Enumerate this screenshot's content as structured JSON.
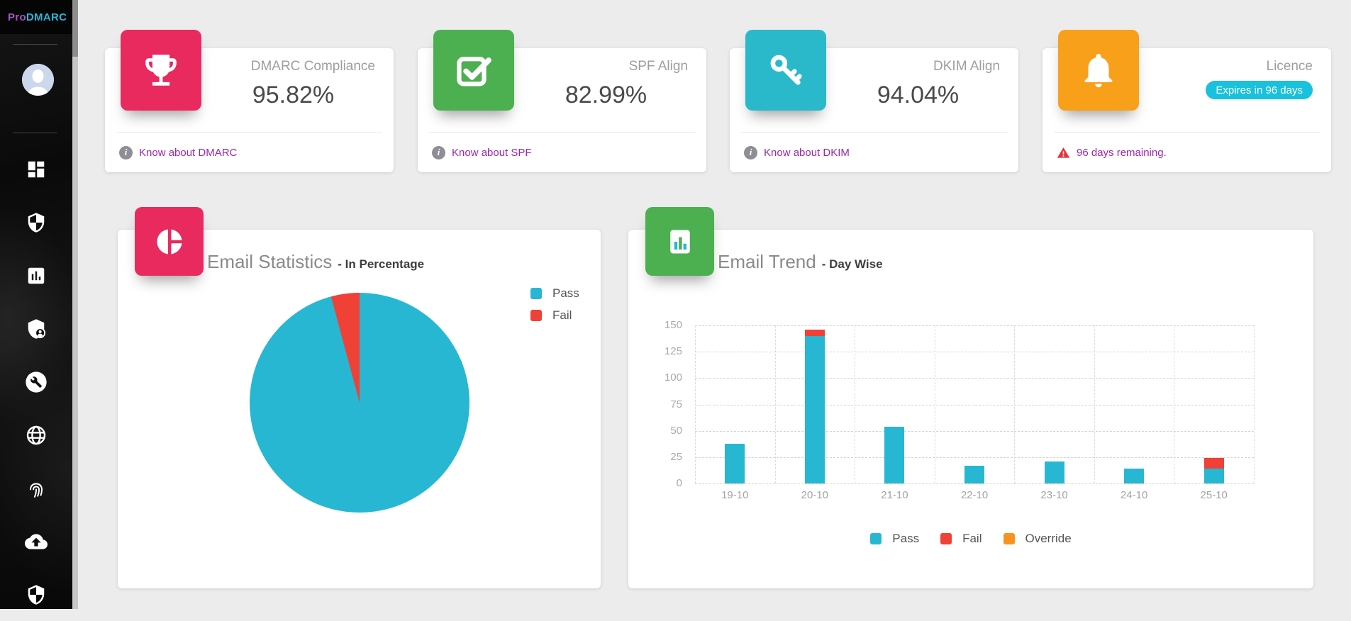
{
  "brand": {
    "prefix": "Pro",
    "name": "DMARC"
  },
  "sidebar": {
    "nav_icons": [
      "dashboard-icon",
      "security-shield-icon",
      "reports-chart-icon",
      "shield-account-icon",
      "tools-wrench-icon",
      "globe-icon",
      "fingerprint-icon",
      "cloud-upload-icon",
      "shield-check-icon"
    ]
  },
  "stat_cards": [
    {
      "label": "DMARC Compliance",
      "value": "95.82%",
      "icon": "trophy-icon",
      "color": "#e82a5f",
      "footer_link": "Know about DMARC"
    },
    {
      "label": "SPF Align",
      "value": "82.99%",
      "icon": "checkbox-icon",
      "color": "#4caf50",
      "footer_link": "Know about SPF"
    },
    {
      "label": "DKIM Align",
      "value": "94.04%",
      "icon": "key-icon",
      "color": "#29b9ca",
      "footer_link": "Know about DKIM"
    },
    {
      "label": "Licence",
      "badge": "Expires in 96 days",
      "badge_color": "#18c2dc",
      "icon": "bell-icon",
      "color": "#f9a01b",
      "footer_warning": "96 days remaining."
    }
  ],
  "email_statistics": {
    "title": "Email Statistics",
    "subtitle": "- In Percentage",
    "icon": "pie-chart-icon",
    "icon_color": "#e82a5f",
    "chart_data": {
      "type": "pie",
      "labels": [
        "Pass",
        "Fail"
      ],
      "values": [
        95.82,
        4.18
      ],
      "colors": [
        "#27b7d2",
        "#ef4136"
      ],
      "legend_position": "right"
    }
  },
  "email_trend": {
    "title": "Email Trend",
    "subtitle": "- Day Wise",
    "icon": "bar-chart-icon",
    "icon_color": "#4caf50",
    "chart_data": {
      "type": "bar",
      "stacked": true,
      "categories": [
        "19-10",
        "20-10",
        "21-10",
        "22-10",
        "23-10",
        "24-10",
        "25-10"
      ],
      "series": [
        {
          "name": "Pass",
          "color": "#27b7d2",
          "values": [
            38,
            140,
            54,
            17,
            21,
            14,
            14
          ]
        },
        {
          "name": "Fail",
          "color": "#ef4136",
          "values": [
            0,
            6,
            0,
            0,
            0,
            0,
            10
          ]
        },
        {
          "name": "Override",
          "color": "#f7941e",
          "values": [
            0,
            0,
            0,
            0,
            0,
            0,
            0
          ]
        }
      ],
      "y_ticks": [
        0,
        25,
        50,
        75,
        100,
        125,
        150
      ],
      "ylim": [
        0,
        150
      ],
      "grid": "dashed",
      "legend_position": "bottom"
    }
  }
}
